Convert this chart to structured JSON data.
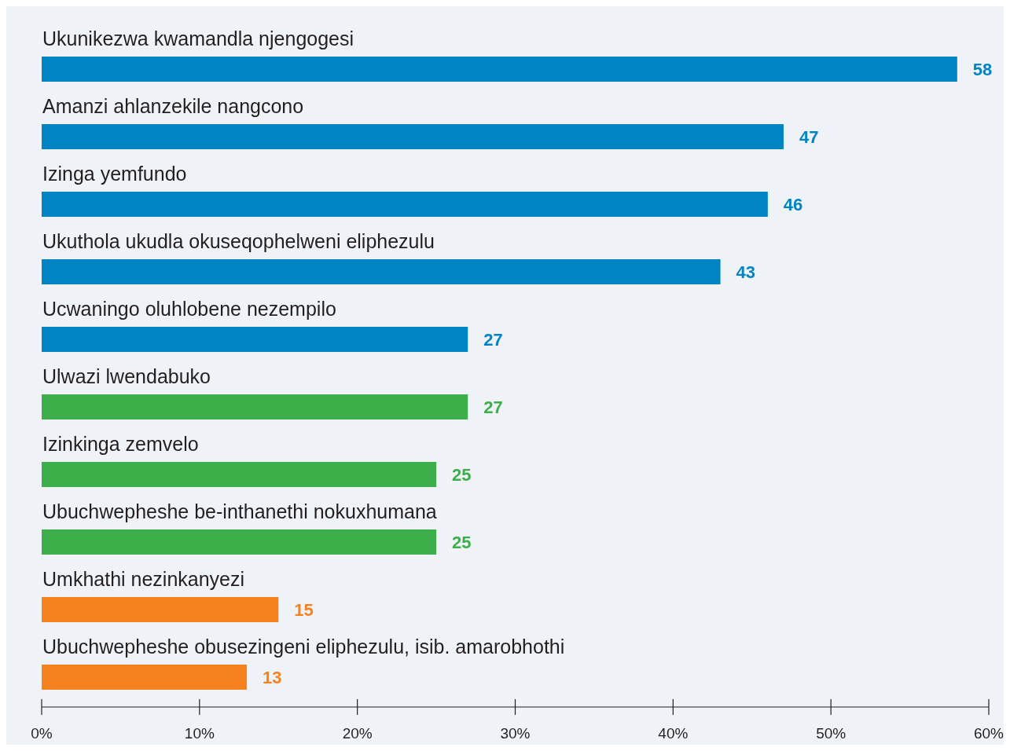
{
  "chart_data": {
    "type": "bar",
    "orientation": "horizontal",
    "categories": [
      "Ukunikezwa kwamandla njengogesi",
      "Amanzi ahlanzekile nangcono",
      "Izinga yemfundo",
      "Ukuthola ukudla okuseqophelweni eliphezulu",
      "Ucwaningo oluhlobene nezempilo",
      "Ulwazi lwendabuko",
      "Izinkinga zemvelo",
      "Ubuchwepheshe be-inthanethi nokuxhumana",
      "Umkhathi nezinkanyezi",
      "Ubuchwepheshe obusezingeni eliphezulu, isib. amarobhothi"
    ],
    "values": [
      58,
      47,
      46,
      43,
      27,
      27,
      25,
      25,
      15,
      13
    ],
    "colors": [
      "#0084c4",
      "#0084c4",
      "#0084c4",
      "#0084c4",
      "#0084c4",
      "#3daf4a",
      "#3daf4a",
      "#3daf4a",
      "#f5821f",
      "#f5821f"
    ],
    "xlim": [
      0,
      60
    ],
    "xticks": [
      {
        "value": 0,
        "label": "0%"
      },
      {
        "value": 10,
        "label": "10%"
      },
      {
        "value": 20,
        "label": "20%"
      },
      {
        "value": 30,
        "label": "30%"
      },
      {
        "value": 40,
        "label": "40%"
      },
      {
        "value": 50,
        "label": "50%"
      },
      {
        "value": 60,
        "label": "60%"
      }
    ],
    "data_labels": true
  }
}
